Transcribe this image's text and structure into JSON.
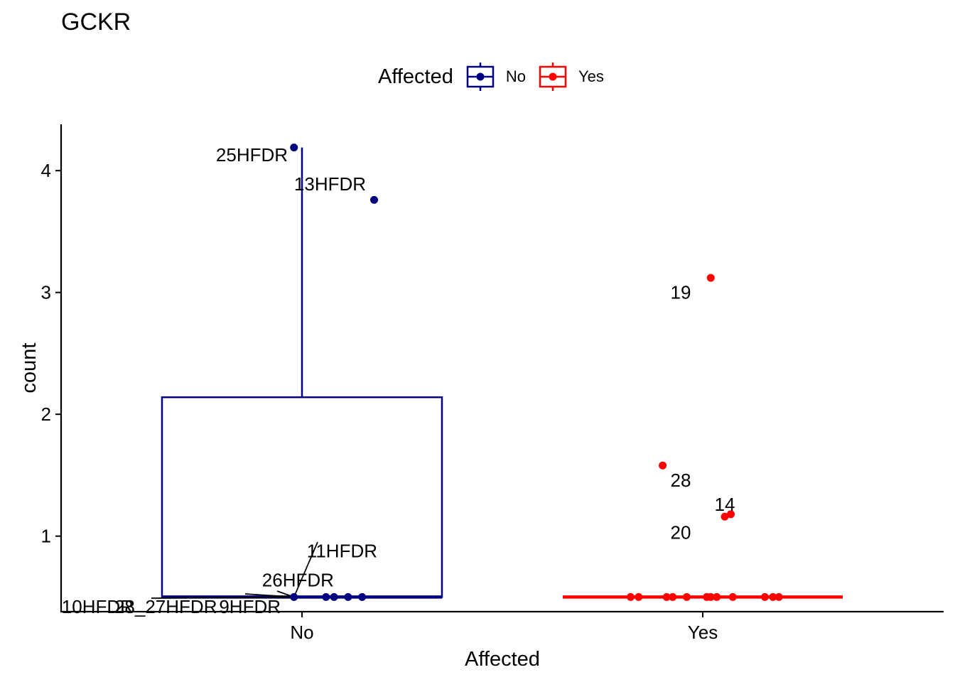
{
  "chart_data": {
    "type": "box",
    "title": "GCKR",
    "xlabel": "Affected",
    "ylabel": "count",
    "categories": [
      "No",
      "Yes"
    ],
    "ylim": [
      0.38,
      4.38
    ],
    "yticks": [
      1,
      2,
      3,
      4
    ],
    "ytick_labels": [
      "1",
      "2",
      "3",
      "4"
    ],
    "legend": {
      "title": "Affected",
      "position": "top",
      "entries": [
        {
          "label": "No",
          "color": "#000080"
        },
        {
          "label": "Yes",
          "color": "#ff0000"
        }
      ]
    },
    "grid": false,
    "series": [
      {
        "name": "No",
        "color": "#000080",
        "box": {
          "q1": 0.5,
          "median": 0.5,
          "q3": 2.14,
          "whisker_low": 0.5,
          "whisker_high": 4.19
        },
        "points": [
          {
            "x": -0.02,
            "y": 4.19
          },
          {
            "x": 0.18,
            "y": 3.76
          },
          {
            "x": -0.02,
            "y": 0.5
          },
          {
            "x": 0.06,
            "y": 0.5
          },
          {
            "x": 0.08,
            "y": 0.5
          },
          {
            "x": 0.115,
            "y": 0.5
          },
          {
            "x": 0.15,
            "y": 0.5
          }
        ],
        "labels": [
          {
            "text": "25HFDR",
            "x": -0.125,
            "y": 4.13
          },
          {
            "text": "13HFDR",
            "x": 0.07,
            "y": 3.89
          },
          {
            "text": "11HFDR",
            "x": 0.1,
            "y": 0.88
          },
          {
            "text": "26HFDR",
            "x": -0.01,
            "y": 0.64
          },
          {
            "text": "10HFDR",
            "x": -0.51,
            "y": 0.42
          },
          {
            "text": "28_27HFDR",
            "x": -0.34,
            "y": 0.42
          },
          {
            "text": "9HFDR",
            "x": -0.13,
            "y": 0.42
          }
        ]
      },
      {
        "name": "Yes",
        "color": "#ff0000",
        "box": {
          "q1": 0.5,
          "median": 0.5,
          "q3": 0.5,
          "whisker_low": 0.5,
          "whisker_high": 0.5
        },
        "points": [
          {
            "x": 0.02,
            "y": 3.12
          },
          {
            "x": -0.1,
            "y": 1.58
          },
          {
            "x": 0.055,
            "y": 1.16
          },
          {
            "x": 0.07,
            "y": 1.18
          },
          {
            "x": -0.18,
            "y": 0.5
          },
          {
            "x": -0.16,
            "y": 0.5
          },
          {
            "x": -0.09,
            "y": 0.5
          },
          {
            "x": -0.075,
            "y": 0.5
          },
          {
            "x": -0.04,
            "y": 0.5
          },
          {
            "x": 0.01,
            "y": 0.5
          },
          {
            "x": 0.02,
            "y": 0.5
          },
          {
            "x": 0.035,
            "y": 0.5
          },
          {
            "x": 0.075,
            "y": 0.5
          },
          {
            "x": 0.155,
            "y": 0.5
          },
          {
            "x": 0.175,
            "y": 0.5
          },
          {
            "x": 0.19,
            "y": 0.5
          }
        ],
        "labels": [
          {
            "text": "19",
            "x": -0.055,
            "y": 3.0
          },
          {
            "text": "28",
            "x": -0.055,
            "y": 1.46
          },
          {
            "text": "14",
            "x": 0.055,
            "y": 1.26
          },
          {
            "text": "20",
            "x": -0.055,
            "y": 1.03
          }
        ]
      }
    ]
  }
}
